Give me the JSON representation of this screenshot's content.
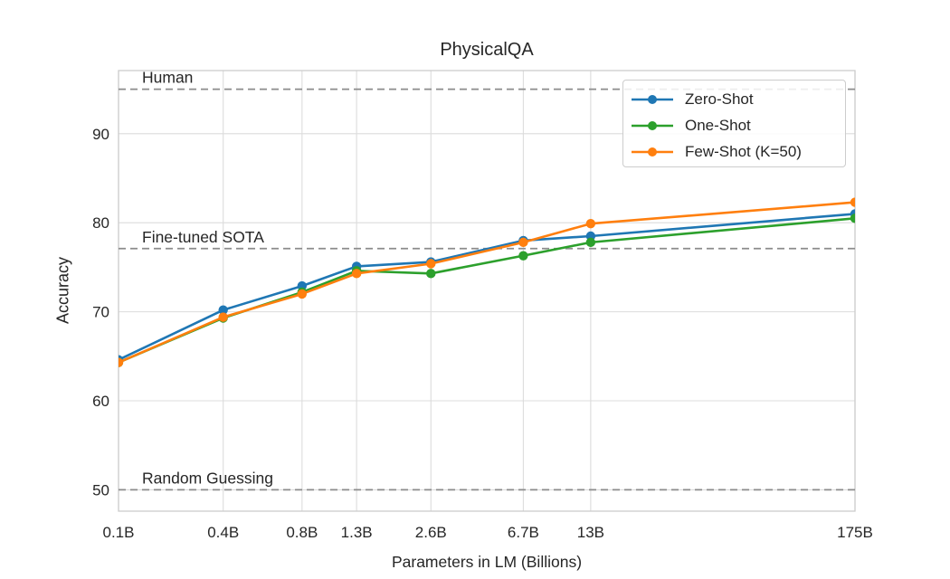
{
  "chart_data": {
    "type": "line",
    "title": "PhysicalQA",
    "xlabel": "Parameters in LM (Billions)",
    "ylabel": "Accuracy",
    "x_scale": "log",
    "x_tick_labels": [
      "0.1B",
      "0.4B",
      "0.8B",
      "1.3B",
      "2.6B",
      "6.7B",
      "13B",
      "175B"
    ],
    "x_values": [
      0.125,
      0.35,
      0.76,
      1.3,
      2.7,
      6.7,
      13,
      175
    ],
    "y_tick_labels": [
      "50",
      "60",
      "70",
      "80",
      "90"
    ],
    "y_ticks": [
      50,
      60,
      70,
      80,
      90
    ],
    "ylim": [
      47.6,
      97.1
    ],
    "grid": true,
    "legend_position": "upper right",
    "series": [
      {
        "name": "Zero-Shot",
        "color": "#1f77b4",
        "values": [
          64.6,
          70.2,
          72.9,
          75.1,
          75.6,
          78.0,
          78.5,
          81.0
        ]
      },
      {
        "name": "One-Shot",
        "color": "#2ca02c",
        "values": [
          64.3,
          69.3,
          72.2,
          74.6,
          74.3,
          76.3,
          77.8,
          80.5
        ]
      },
      {
        "name": "Few-Shot (K=50)",
        "color": "#ff7f0e",
        "values": [
          64.3,
          69.4,
          72.0,
          74.3,
          75.4,
          77.8,
          79.9,
          82.3
        ]
      }
    ],
    "reference_lines": [
      {
        "label": "Human",
        "value": 95.0
      },
      {
        "label": "Fine-tuned SOTA",
        "value": 77.1
      },
      {
        "label": "Random Guessing",
        "value": 50.0
      }
    ],
    "colors": {
      "grid": "#dcdcdc",
      "spine": "#cccccc",
      "reference_line": "#8c8c8c",
      "text": "#262626"
    }
  }
}
